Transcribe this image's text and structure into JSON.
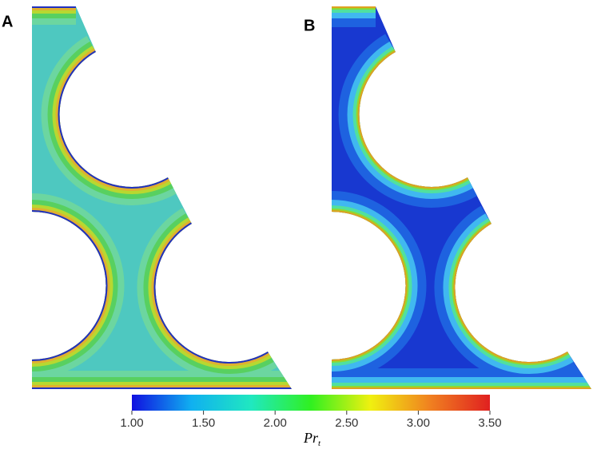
{
  "chart_data": {
    "type": "contour",
    "panels": [
      "A",
      "B"
    ],
    "colorbar_label": "Pr",
    "colorbar_label_subscript": "t",
    "clim": [
      1,
      3.5
    ],
    "cticks": [
      {
        "value": 1,
        "label": "1.00"
      },
      {
        "value": 1.5,
        "label": "1.50"
      },
      {
        "value": 2,
        "label": "2.00"
      },
      {
        "value": 2.5,
        "label": "2.50"
      },
      {
        "value": 3,
        "label": "3.00"
      },
      {
        "value": 3.5,
        "label": "3.50"
      }
    ],
    "colormap": [
      "#1010e0",
      "#10b0f0",
      "#20e8c0",
      "#30f020",
      "#f0f010",
      "#f08020",
      "#e02020"
    ]
  }
}
